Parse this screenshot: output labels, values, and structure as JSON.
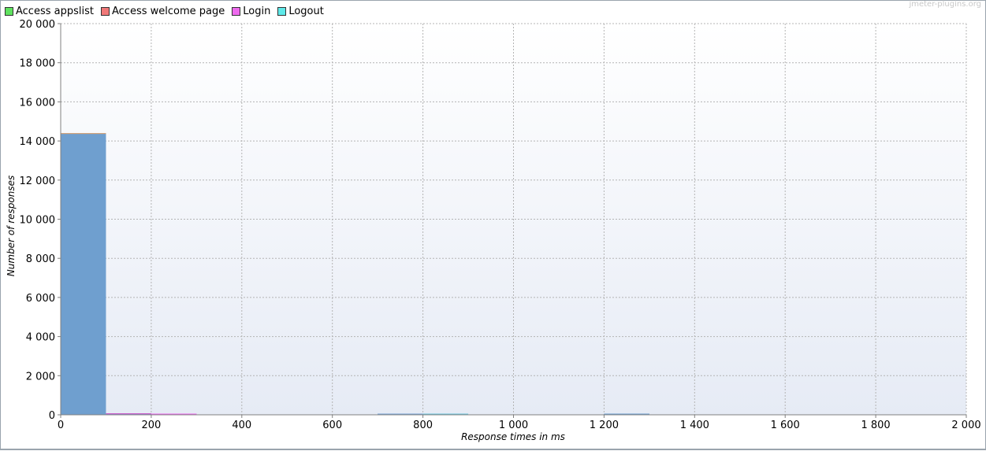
{
  "watermark": "jmeter-plugins.org",
  "chart_data": {
    "type": "bar",
    "title": "",
    "xlabel": "Response times in ms",
    "ylabel": "Number of responses",
    "xlim": [
      0,
      2000
    ],
    "ylim": [
      0,
      20000
    ],
    "x_ticks": [
      0,
      200,
      400,
      600,
      800,
      1000,
      1200,
      1400,
      1600,
      1800,
      2000
    ],
    "x_tick_labels": [
      "0",
      "200",
      "400",
      "600",
      "800",
      "1 000",
      "1 200",
      "1 400",
      "1 600",
      "1 800",
      "2 000"
    ],
    "y_ticks": [
      0,
      2000,
      4000,
      6000,
      8000,
      10000,
      12000,
      14000,
      16000,
      18000,
      20000
    ],
    "y_tick_labels": [
      "0",
      "2 000",
      "4 000",
      "6 000",
      "8 000",
      "10 000",
      "12 000",
      "14 000",
      "16 000",
      "18 000",
      "20 000"
    ],
    "grid": true,
    "legend_position": "top-left",
    "bin_width": 100,
    "series": [
      {
        "name": "Access appslist",
        "color": "#5fe25f"
      },
      {
        "name": "Access welcome page",
        "color": "#f07878"
      },
      {
        "name": "Login",
        "color": "#ee6aee"
      },
      {
        "name": "Logout",
        "color": "#5ee9e9"
      }
    ],
    "bars": [
      {
        "x": 0,
        "value": 14400,
        "color": "#6f9fcf",
        "top_color": "#e0a06a"
      },
      {
        "x": 100,
        "value": 80,
        "color": "#9b7fd8",
        "top_color": "#cc66cc"
      },
      {
        "x": 200,
        "value": 40,
        "color": "#d08ad8",
        "top_color": "#ee6aee"
      },
      {
        "x": 700,
        "value": 40,
        "color": "#7aa6d6",
        "top_color": "#7aa6d6"
      },
      {
        "x": 800,
        "value": 30,
        "color": "#6fc6dd",
        "top_color": "#6fc6dd"
      },
      {
        "x": 1200,
        "value": 40,
        "color": "#6f9fcf",
        "top_color": "#6f9fcf"
      }
    ]
  }
}
